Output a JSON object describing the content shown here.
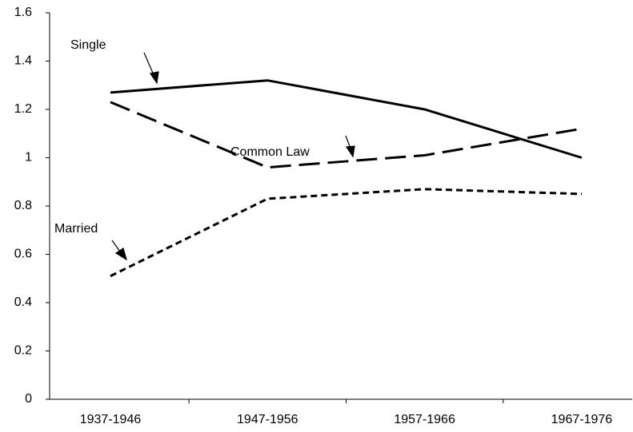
{
  "chart_data": {
    "type": "line",
    "categories": [
      "1937-1946",
      "1947-1956",
      "1957-1966",
      "1967-1976"
    ],
    "series": [
      {
        "name": "Single",
        "color": "#000000",
        "line_style": "solid",
        "values": [
          1.27,
          1.32,
          1.2,
          1.0
        ]
      },
      {
        "name": "Common Law",
        "color": "#000000",
        "line_style": "long-dash",
        "values": [
          1.23,
          0.96,
          1.01,
          1.12
        ]
      },
      {
        "name": "Married",
        "color": "#000000",
        "line_style": "short-dash",
        "values": [
          0.51,
          0.83,
          0.87,
          0.85
        ]
      }
    ],
    "ylim": [
      0,
      1.6
    ],
    "yticks": [
      0,
      0.2,
      0.4,
      0.6,
      0.8,
      1,
      1.2,
      1.4,
      1.6
    ],
    "grid": false
  }
}
